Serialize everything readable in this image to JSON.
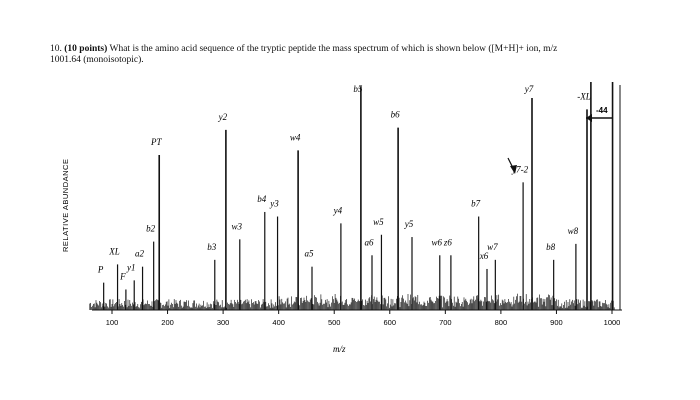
{
  "question": {
    "number": "10.",
    "points": "(10 points)",
    "text": "What is the amino acid sequence of the tryptic peptide the mass spectrum of which is shown below ([M+H]+ ion, m/z",
    "text_line2": "1001.64 (monoisotopic)."
  },
  "chart_data": {
    "type": "bar",
    "xlabel": "m/z",
    "ylabel": "RELATIVE ABUNDANCE",
    "xlim": [
      50,
      1020
    ],
    "ylim": [
      0,
      100
    ],
    "x_ticks": [
      "100",
      "200",
      "300",
      "400",
      "500",
      "600",
      "700",
      "800",
      "900",
      "1000"
    ],
    "x_tick_values": [
      100,
      200,
      300,
      400,
      500,
      600,
      700,
      800,
      900,
      1000
    ],
    "peaks": [
      {
        "mz": 85,
        "intensity": 12,
        "label": "P"
      },
      {
        "mz": 110,
        "intensity": 20,
        "label": "XL"
      },
      {
        "mz": 125,
        "intensity": 9,
        "label": "F"
      },
      {
        "mz": 140,
        "intensity": 13,
        "label": "y1"
      },
      {
        "mz": 155,
        "intensity": 19,
        "label": "a2"
      },
      {
        "mz": 175,
        "intensity": 30,
        "label": "b2"
      },
      {
        "mz": 185,
        "intensity": 68,
        "label": "PT"
      },
      {
        "mz": 285,
        "intensity": 22,
        "label": "b3"
      },
      {
        "mz": 305,
        "intensity": 79,
        "label": "y2"
      },
      {
        "mz": 330,
        "intensity": 31,
        "label": "w3"
      },
      {
        "mz": 375,
        "intensity": 43,
        "label": "b4"
      },
      {
        "mz": 398,
        "intensity": 41,
        "label": "y3"
      },
      {
        "mz": 435,
        "intensity": 70,
        "label": "w4"
      },
      {
        "mz": 460,
        "intensity": 19,
        "label": "a5"
      },
      {
        "mz": 512,
        "intensity": 38,
        "label": "y4"
      },
      {
        "mz": 548,
        "intensity": 98,
        "label": "b5"
      },
      {
        "mz": 568,
        "intensity": 24,
        "label": "a6"
      },
      {
        "mz": 585,
        "intensity": 33,
        "label": "w5"
      },
      {
        "mz": 615,
        "intensity": 80,
        "label": "b6"
      },
      {
        "mz": 640,
        "intensity": 32,
        "label": "y5"
      },
      {
        "mz": 690,
        "intensity": 24,
        "label": "w6"
      },
      {
        "mz": 710,
        "intensity": 24,
        "label": "z6"
      },
      {
        "mz": 760,
        "intensity": 41,
        "label": "b7"
      },
      {
        "mz": 775,
        "intensity": 18,
        "label": "x6"
      },
      {
        "mz": 790,
        "intensity": 22,
        "label": "w7"
      },
      {
        "mz": 840,
        "intensity": 56,
        "label": "y7-2"
      },
      {
        "mz": 856,
        "intensity": 93,
        "label": "y7"
      },
      {
        "mz": 895,
        "intensity": 22,
        "label": "b8"
      },
      {
        "mz": 935,
        "intensity": 29,
        "label": "w8"
      },
      {
        "mz": 955,
        "intensity": 88,
        "label": "-XL"
      },
      {
        "mz": 962,
        "intensity": 100,
        "label": ""
      },
      {
        "mz": 1001,
        "intensity": 100,
        "label": ""
      }
    ],
    "annotations": {
      "bracket_label": "-44"
    }
  }
}
